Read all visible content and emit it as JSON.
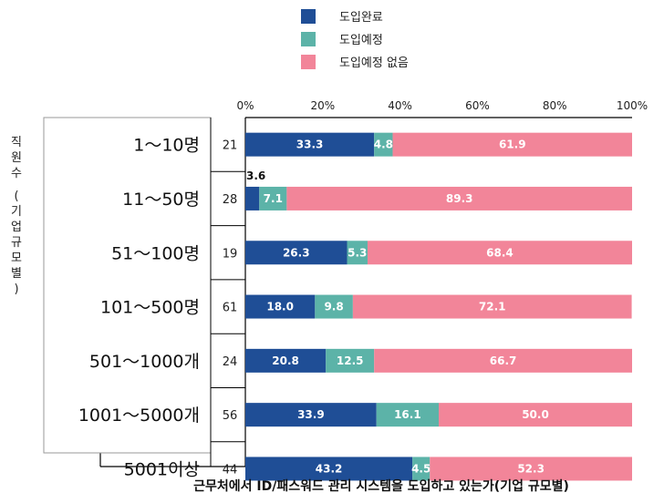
{
  "chart_data": {
    "type": "bar",
    "orientation": "horizontal",
    "stacked": true,
    "percent": true,
    "xlabel": "근무처에서 ID/패스워드 관리 시스템을 도입하고 있는가(기업 규모별)",
    "ylabel": "직원수 (기업규모별)",
    "xlim": [
      0,
      100
    ],
    "x_ticks": [
      "0%",
      "20%",
      "40%",
      "60%",
      "80%",
      "100%"
    ],
    "legend_position": "top",
    "categories": [
      "1〜10명",
      "11〜50명",
      "51〜100명",
      "101〜500명",
      "501〜1000개",
      "1001〜5000개",
      "5001이상"
    ],
    "n": [
      "21",
      "28",
      "19",
      "61",
      "24",
      "56",
      "44"
    ],
    "series": [
      {
        "name": "도입완료",
        "color": "#1f4e96",
        "values": [
          33.3,
          3.6,
          26.3,
          18.0,
          20.8,
          33.9,
          43.2
        ],
        "labels": [
          "33.3",
          "3.6",
          "26.3",
          "18.0",
          "20.8",
          "33.9",
          "43.2"
        ]
      },
      {
        "name": "도입예정",
        "color": "#5cb3a8",
        "values": [
          4.8,
          7.1,
          5.3,
          9.8,
          12.5,
          16.1,
          4.5
        ],
        "labels": [
          "4.8",
          "7.1",
          "5.3",
          "9.8",
          "12.5",
          "16.1",
          "4.5"
        ]
      },
      {
        "name": "도입예정 없음",
        "color": "#f28599",
        "values": [
          61.9,
          89.3,
          68.4,
          72.1,
          66.7,
          50.0,
          52.3
        ],
        "labels": [
          "61.9",
          "89.3",
          "68.4",
          "72.1",
          "66.7",
          "50.0",
          "52.3"
        ]
      }
    ]
  }
}
